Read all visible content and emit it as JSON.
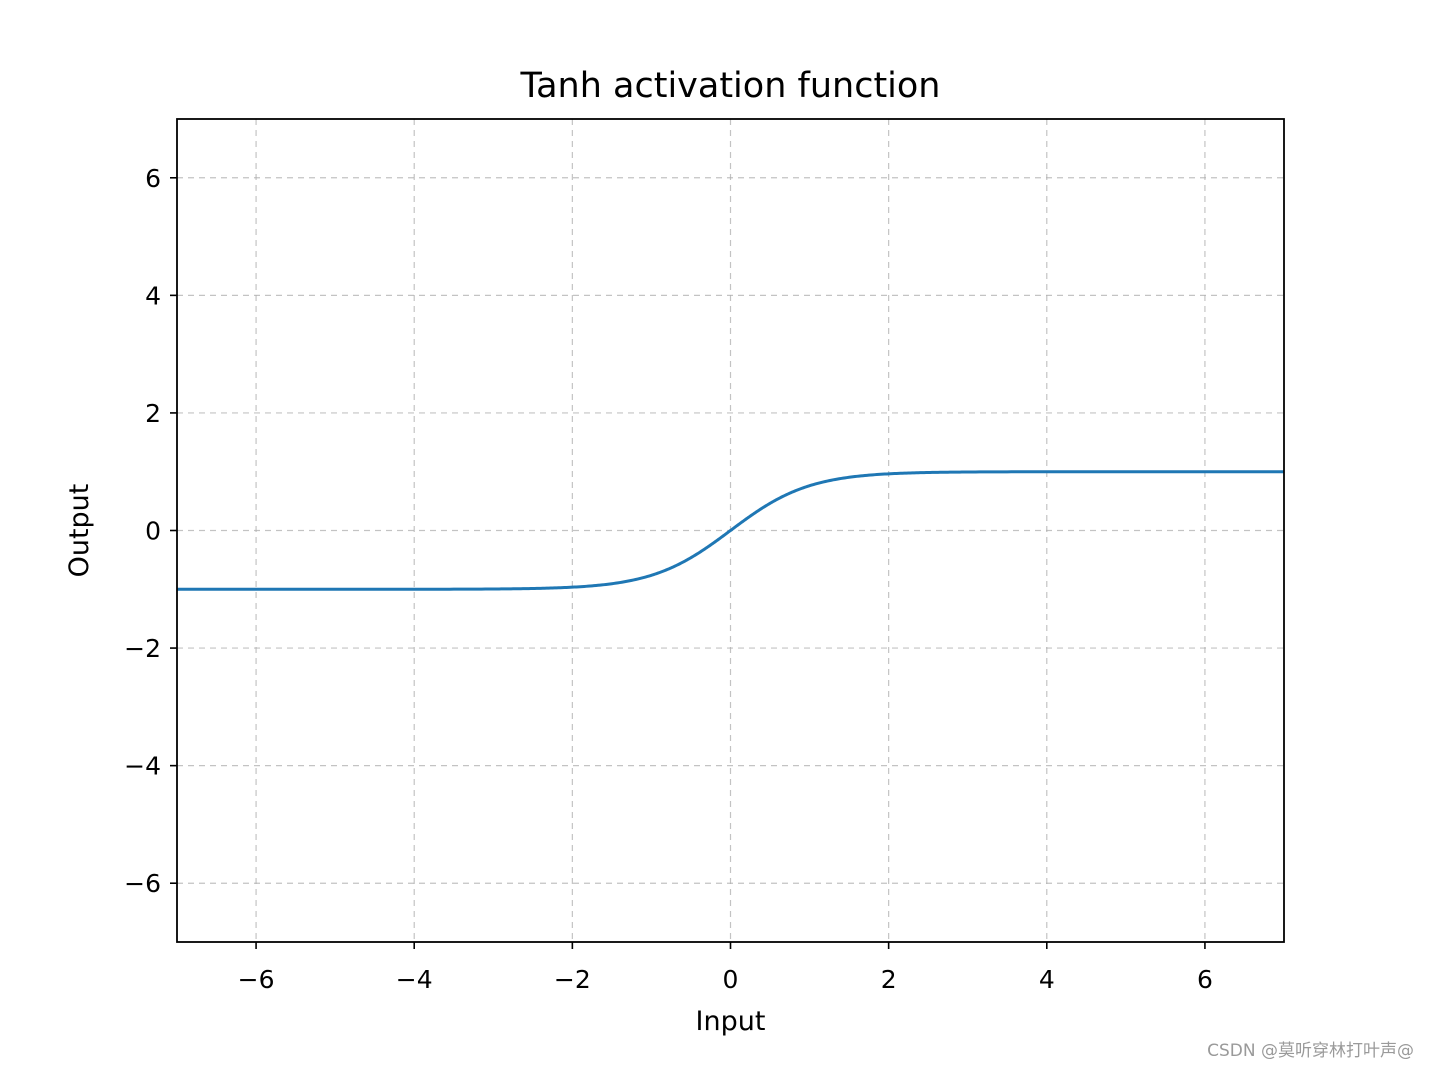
{
  "chart_data": {
    "type": "line",
    "title": "Tanh activation function",
    "xlabel": "Input",
    "ylabel": "Output",
    "xlim": [
      -7,
      7
    ],
    "ylim": [
      -7,
      7
    ],
    "x_ticks": [
      -6,
      -4,
      -2,
      0,
      2,
      4,
      6
    ],
    "y_ticks": [
      -6,
      -4,
      -2,
      0,
      2,
      4,
      6
    ],
    "x_tick_labels": [
      "−6",
      "−4",
      "−2",
      "0",
      "2",
      "4",
      "6"
    ],
    "y_tick_labels": [
      "−6",
      "−4",
      "−2",
      "0",
      "2",
      "4",
      "6"
    ],
    "grid": true,
    "series": [
      {
        "color": "#1f77b4",
        "x": [
          -7,
          -6,
          -5,
          -4,
          -3,
          -2.5,
          -2,
          -1.5,
          -1,
          -0.75,
          -0.5,
          -0.25,
          0,
          0.25,
          0.5,
          0.75,
          1,
          1.5,
          2,
          2.5,
          3,
          4,
          5,
          6,
          7
        ],
        "y": [
          -1.0,
          -1.0,
          -0.9999,
          -0.9993,
          -0.9951,
          -0.9866,
          -0.964,
          -0.9051,
          -0.7616,
          -0.6351,
          -0.4621,
          -0.2449,
          0.0,
          0.2449,
          0.4621,
          0.6351,
          0.7616,
          0.9051,
          0.964,
          0.9866,
          0.9951,
          0.9993,
          0.9999,
          1.0,
          1.0
        ]
      }
    ]
  },
  "watermark": "CSDN @莫听穿林打叶声@"
}
